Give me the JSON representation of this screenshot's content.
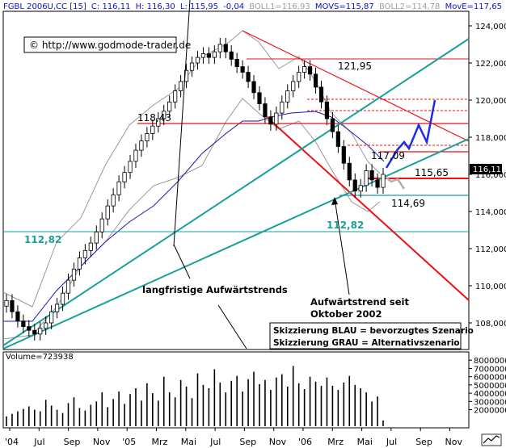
{
  "header": {
    "symbol": "FGBL 2006U,CC [15]",
    "c": "C: 116,11",
    "h": "H: 116,30",
    "l": "L: 115,95",
    "chg": "-0,04",
    "boll1": "BOLL1=116,93",
    "movs": "MOVS=115,87",
    "boll2": "BOLL2=114,78",
    "move": "MovE=117,65"
  },
  "copyright": "© http://www.godmode-trader.de",
  "price_box": "116,11",
  "volume_label": "Volume=723938",
  "colors": {
    "header_blue": "#1010c0",
    "teal": "#1aa09a",
    "red": "#ee1111",
    "bollinger": "#888888",
    "ma_blue": "#1a1aa8",
    "scenario_blue": "#1a2ee8",
    "scenario_gray": "#b0b0b0"
  },
  "annotations": {
    "level_121": "121,95",
    "level_118": "118,43",
    "level_117": "117,09",
    "level_115": "115,65",
    "level_114": "114,69",
    "level_112_left": "112,82",
    "level_112_mid": "112,82",
    "trend_label": "langfristige Aufwärtstrends",
    "trend_since_1": "Aufwärtstrend seit",
    "trend_since_2": "Oktober 2002",
    "legend_1": "Skizzierung BLAU = bevorzugtes Szenario",
    "legend_2": "Skizzierung GRAU = Alternativszenario"
  },
  "chart_data": {
    "type": "candlestick",
    "price_axis": {
      "ticks": [
        108,
        110,
        112,
        114,
        116,
        118,
        120,
        122,
        124
      ],
      "tick_labels": [
        "108,000",
        "110,000",
        "112,000",
        "114,000",
        "116,000",
        "118,000",
        "120,000",
        "122,000",
        "124,000"
      ],
      "range": [
        106.8,
        124.6
      ]
    },
    "volume_axis": {
      "ticks": [
        2000000,
        3000000,
        4000000,
        5000000,
        6000000,
        7000000,
        8000000
      ],
      "tick_labels": [
        "2000000",
        "3000000",
        "4000000",
        "5000000",
        "6000000",
        "7000000",
        "8000000"
      ],
      "range": [
        0,
        9000000
      ]
    },
    "x_labels": [
      "'04",
      "Jul",
      "Sep",
      "Nov",
      "'05",
      "Mrz",
      "Mai",
      "Jul",
      "Sep",
      "Nov",
      "'06",
      "Mrz",
      "Mai",
      "Jul",
      "Sep",
      "Nov"
    ],
    "horizontal_levels": [
      121.95,
      118.43,
      117.09,
      115.65,
      114.69,
      112.82
    ],
    "close_series": [
      109.2,
      108.6,
      108.1,
      107.8,
      107.6,
      107.4,
      107.7,
      108.0,
      108.6,
      109.0,
      109.6,
      110.3,
      110.9,
      111.5,
      111.9,
      112.3,
      112.9,
      113.6,
      114.3,
      114.9,
      115.6,
      116.1,
      116.7,
      117.3,
      117.8,
      118.2,
      118.6,
      119.0,
      119.4,
      119.9,
      120.5,
      121.0,
      121.6,
      122.0,
      122.3,
      122.5,
      122.3,
      122.6,
      123.0,
      122.6,
      122.2,
      121.8,
      121.5,
      121.0,
      120.4,
      119.8,
      119.1,
      118.7,
      119.3,
      119.9,
      120.5,
      121.0,
      121.5,
      121.8,
      121.4,
      120.7,
      119.9,
      119.0,
      118.3,
      117.5,
      116.6,
      115.7,
      115.1,
      115.4,
      116.2,
      115.7,
      115.3,
      116.0
    ],
    "volume_series": [
      1.2,
      1.5,
      1.8,
      2.1,
      2.4,
      2.0,
      1.8,
      3.2,
      2.5,
      2.0,
      1.6,
      2.8,
      3.5,
      2.2,
      1.9,
      2.6,
      3.0,
      4.1,
      2.3,
      3.3,
      4.2,
      2.7,
      3.9,
      4.6,
      3.1,
      5.2,
      4.0,
      3.1,
      6.0,
      4.1,
      3.5,
      5.6,
      4.8,
      3.4,
      6.4,
      5.0,
      4.6,
      6.9,
      5.3,
      4.1,
      5.5,
      6.1,
      4.2,
      5.7,
      6.6,
      5.1,
      5.6,
      4.4,
      5.9,
      6.3,
      4.8,
      7.3,
      5.2,
      4.5,
      6.0,
      5.4,
      4.9,
      5.9,
      4.9,
      4.4,
      5.3,
      6.1,
      5.0,
      4.6,
      4.1,
      3.0,
      3.6,
      0.7
    ]
  }
}
